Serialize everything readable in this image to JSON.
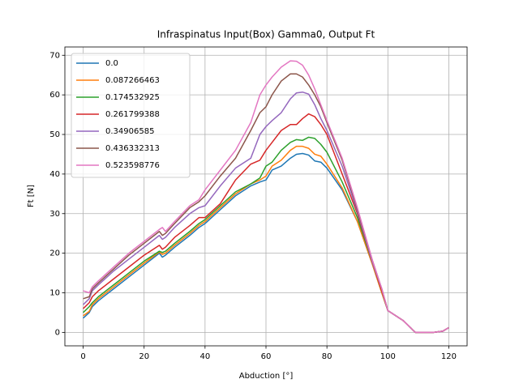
{
  "chart_data": {
    "type": "line",
    "title": "Infraspinatus Input(Box) Gamma0, Output Ft",
    "xlabel": "Abduction [°]",
    "ylabel": "Ft [N]",
    "x": [
      0,
      2,
      3,
      5,
      10,
      15,
      20,
      25,
      26,
      27,
      30,
      35,
      38,
      40,
      45,
      50,
      55,
      58,
      60,
      62,
      65,
      68,
      70,
      72,
      74,
      76,
      78,
      80,
      85,
      90,
      95,
      98,
      100,
      105,
      109,
      115,
      118,
      120
    ],
    "series": [
      {
        "name": "0.0",
        "color": "#1f77b4",
        "values": [
          3.6,
          5,
          6.5,
          8,
          11,
          14,
          17,
          20,
          19,
          19.5,
          21.5,
          24.5,
          26.5,
          27.5,
          31,
          34.5,
          37,
          38,
          38.5,
          41,
          42,
          44,
          45,
          45.2,
          44.8,
          43.3,
          43,
          41.5,
          36,
          28,
          17,
          10,
          5.5,
          3,
          0,
          0,
          0.3,
          1.2
        ]
      },
      {
        "name": "0.087266463",
        "color": "#ff7f0e",
        "values": [
          4.2,
          5.3,
          7,
          8.5,
          11.5,
          14.5,
          17.5,
          20.3,
          19.7,
          20,
          22,
          25,
          27,
          28,
          31.5,
          35,
          37.5,
          38.5,
          39.5,
          42,
          43.5,
          46,
          47,
          47,
          46.5,
          45,
          44.5,
          42.5,
          36.5,
          28,
          17,
          10,
          5.5,
          3,
          0,
          0,
          0.3,
          1.2
        ]
      },
      {
        "name": "0.174532925",
        "color": "#2ca02c",
        "values": [
          5,
          6.5,
          7.5,
          9,
          12,
          15,
          18,
          20.5,
          20.2,
          20.5,
          22.5,
          25.5,
          27.5,
          28.5,
          32,
          35.5,
          37.5,
          39,
          42,
          43,
          46,
          48,
          48.7,
          48.5,
          49.3,
          49,
          47.5,
          45.5,
          38,
          29,
          17.5,
          10.5,
          5.5,
          3,
          0,
          0,
          0.3,
          1.2
        ]
      },
      {
        "name": "0.261799388",
        "color": "#d62728",
        "values": [
          6,
          7.5,
          9,
          10.5,
          13.5,
          16.5,
          19.5,
          22,
          21,
          21.5,
          24,
          27,
          29,
          29,
          32.5,
          38.5,
          42.5,
          43.5,
          46,
          48,
          51,
          52.5,
          52.5,
          54,
          55.2,
          54.5,
          52.5,
          50,
          40,
          30,
          17.5,
          10.5,
          5.5,
          3,
          0,
          0,
          0.3,
          1.2
        ]
      },
      {
        "name": "0.34906585",
        "color": "#9467bd",
        "values": [
          7,
          8.5,
          10.5,
          12,
          15.5,
          18.5,
          21.5,
          24.5,
          23.5,
          24,
          26.5,
          30,
          31.5,
          32,
          37,
          41.5,
          44,
          50,
          52,
          53.5,
          55.5,
          59,
          60.5,
          60.7,
          60.2,
          57.5,
          54,
          51,
          42,
          30.5,
          17.5,
          11,
          5.5,
          3,
          0,
          0,
          0.3,
          1.2
        ]
      },
      {
        "name": "0.436332313",
        "color": "#8c564b",
        "values": [
          8.5,
          9,
          11,
          12.5,
          16,
          19.5,
          22.5,
          25.5,
          24.5,
          25,
          27.5,
          31.5,
          33,
          34.5,
          39.5,
          44,
          51,
          55.5,
          57,
          60,
          63.5,
          65.3,
          65.3,
          64.5,
          62.5,
          60,
          57,
          53,
          43.5,
          31,
          18,
          11,
          5.5,
          3,
          0,
          0,
          0.3,
          1.2
        ]
      },
      {
        "name": "0.523598776",
        "color": "#e377c2",
        "values": [
          10.5,
          10,
          11.5,
          13,
          16.5,
          20,
          23,
          26,
          26.5,
          25.5,
          28,
          32,
          33.5,
          36,
          41,
          46,
          53,
          60,
          62.5,
          64.5,
          67,
          68.6,
          68.5,
          67.5,
          65,
          61.5,
          57.5,
          53.5,
          44,
          31.5,
          18,
          11,
          5.5,
          3,
          0,
          0,
          0.3,
          1.2
        ]
      }
    ],
    "xlim": [
      -6,
      126
    ],
    "ylim": [
      -3.4,
      72.1
    ],
    "xticks": [
      0,
      20,
      40,
      60,
      80,
      100,
      120
    ],
    "yticks": [
      0,
      10,
      20,
      30,
      40,
      50,
      60,
      70
    ],
    "grid": true,
    "legend": "upper left"
  }
}
